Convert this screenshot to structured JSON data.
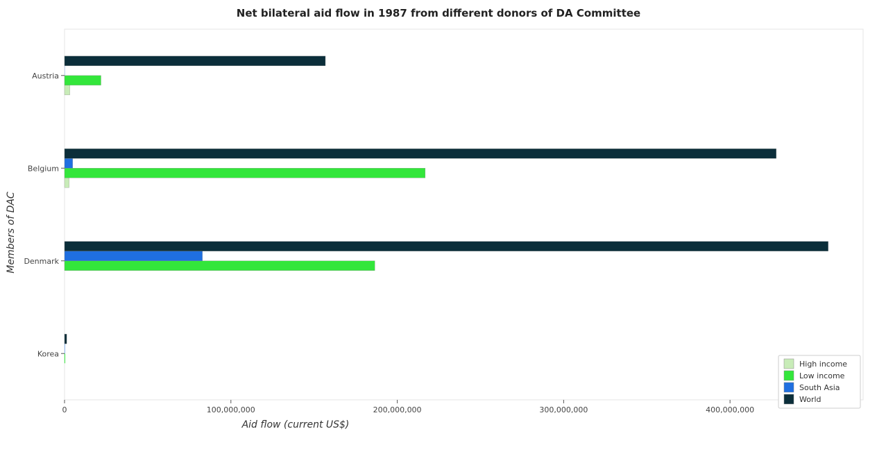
{
  "chart_data": {
    "type": "bar",
    "orientation": "horizontal",
    "title": "Net bilateral aid flow in 1987 from different donors of DA Committee",
    "xlabel": "Aid flow (current US$)",
    "ylabel": "Members of DAC",
    "categories": [
      "Austria",
      "Belgium",
      "Denmark",
      "Korea"
    ],
    "xlim": [
      0,
      480000000
    ],
    "xticks": [
      0,
      100000000,
      200000000,
      300000000,
      400000000
    ],
    "xtick_labels": [
      "0",
      "100,000,000",
      "200,000,000",
      "300,000,000",
      "400,000,000"
    ],
    "grid": false,
    "legend_position": "bottom-right",
    "series": [
      {
        "name": "High income",
        "color": "#c8ecb8",
        "values": [
          3200000,
          2800000,
          0,
          0
        ]
      },
      {
        "name": "Low income",
        "color": "#33e63b",
        "values": [
          21900000,
          216800000,
          186500000,
          400000
        ]
      },
      {
        "name": "South Asia",
        "color": "#1f6fe0",
        "values": [
          100000,
          4900000,
          82900000,
          200000
        ]
      },
      {
        "name": "World",
        "color": "#0b2e3a",
        "values": [
          156800000,
          427800000,
          459000000,
          1300000
        ]
      }
    ]
  }
}
